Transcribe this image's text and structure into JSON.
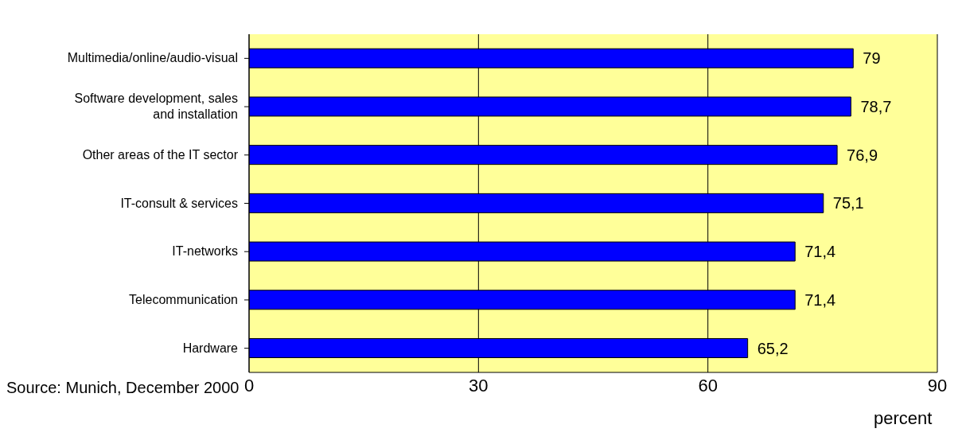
{
  "chart_data": {
    "type": "bar",
    "orientation": "horizontal",
    "xlabel": "percent",
    "categories": [
      "Multimedia/online/audio-visual",
      "Software development, sales and installation",
      "Other areas of the IT sector",
      "IT-consult & services",
      "IT-networks",
      "Telecommunication",
      "Hardware"
    ],
    "values": [
      79,
      78.7,
      76.9,
      75.1,
      71.4,
      71.4,
      65.2
    ],
    "value_labels": [
      "79",
      "78,7",
      "76,9",
      "75,1",
      "71,4",
      "71,4",
      "65,2"
    ],
    "color": "#0000ff",
    "xlim": [
      0,
      90
    ],
    "xticks": [
      0,
      30,
      60,
      90
    ],
    "grid": "x",
    "annotations": [
      "Source: Munich, December 2000"
    ]
  }
}
